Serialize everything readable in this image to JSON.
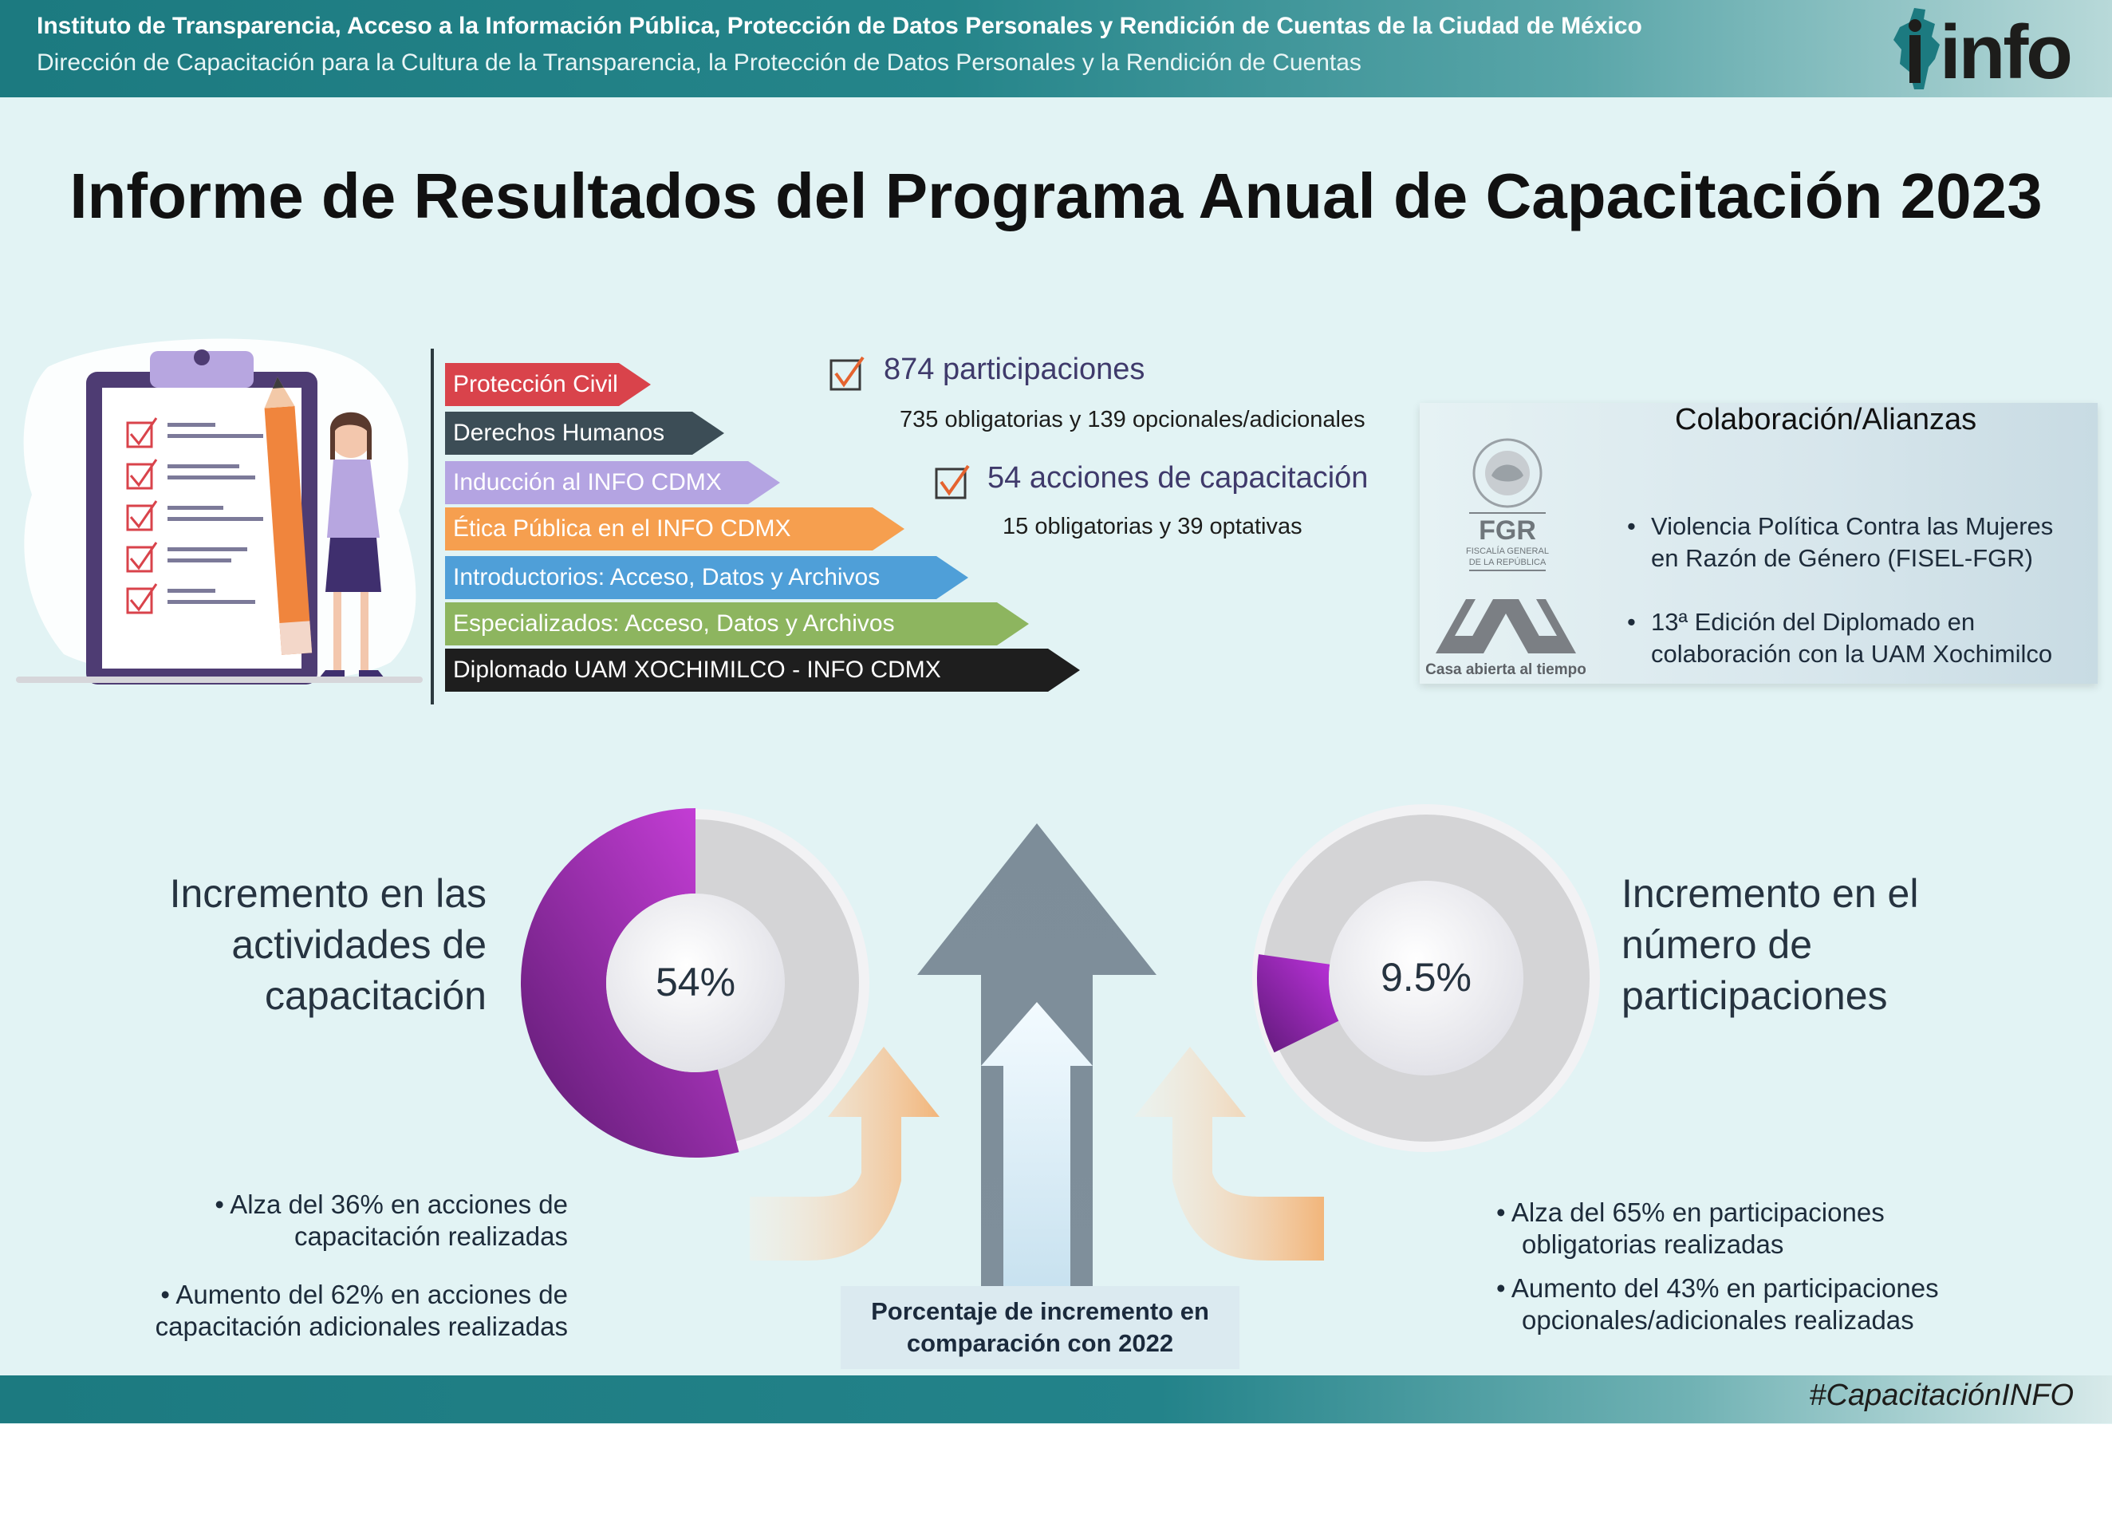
{
  "header": {
    "line1": "Instituto de Transparencia, Acceso a la Información Pública, Protección de Datos Personales y Rendición de Cuentas de la Ciudad de México",
    "line2": "Dirección de Capacitación para la Cultura de la Transparencia, la Protección de Datos Personales y la Rendición de Cuentas",
    "logo_text": "info"
  },
  "title": "Informe de Resultados del Programa Anual de Capacitación 2023",
  "topics": [
    {
      "label": "Protección Civil",
      "color": "#d9434b"
    },
    {
      "label": "Derechos Humanos",
      "color": "#3c4d56"
    },
    {
      "label": "Inducción al INFO CDMX",
      "color": "#b4a4e2"
    },
    {
      "label": "Ética Pública en el INFO CDMX",
      "color": "#f69f4f"
    },
    {
      "label": "Introductorios: Acceso, Datos y Archivos",
      "color": "#4f9fd8"
    },
    {
      "label": "Especializados: Acceso, Datos y Archivos",
      "color": "#8db55f"
    },
    {
      "label": "Diplomado UAM XOCHIMILCO - INFO CDMX",
      "color": "#1e1e1e"
    }
  ],
  "stats": {
    "participaciones": "874 participaciones",
    "participaciones_detail": "735 obligatorias y 139 opcionales/adicionales",
    "acciones": "54 acciones de capacitación",
    "acciones_detail": "15 obligatorias y 39 optativas"
  },
  "collab": {
    "title": "Colaboración/Alianzas",
    "items": [
      {
        "line1": "Violencia Política Contra las Mujeres",
        "line2": "en Razón de Género (FISEL-FGR)"
      },
      {
        "line1": "13ª Edición del Diplomado en",
        "line2": "colaboración con la UAM Xochimilco"
      }
    ],
    "fgr_text": "FGR",
    "fgr_sub1": "FISCALÍA GENERAL",
    "fgr_sub2": "DE LA REPÚBLICA",
    "uam_caption": "Casa abierta al tiempo"
  },
  "left_metric": {
    "percent_label": "54%",
    "value": 54,
    "title_lines": [
      "Incremento en las",
      "actividades de",
      "capacitación"
    ],
    "bullets": [
      {
        "line1": "Alza del 36% en acciones de",
        "line2": "capacitación realizadas"
      },
      {
        "line1": "Aumento del 62% en acciones de",
        "line2": "capacitación adicionales realizadas"
      }
    ]
  },
  "right_metric": {
    "percent_label": "9.5%",
    "value": 9.5,
    "title_lines": [
      "Incremento en el",
      "número de",
      "participaciones"
    ],
    "bullets": [
      {
        "line1": "Alza del 65% en participaciones",
        "line2": "obligatorias realizadas"
      },
      {
        "line1": "Aumento del 43% en participaciones",
        "line2": "opcionales/adicionales realizadas"
      }
    ]
  },
  "comparison": {
    "line1": "Porcentaje de incremento en",
    "line2": "comparación con 2022"
  },
  "footer": {
    "hashtag": "#CapacitaciónINFO"
  },
  "colors": {
    "teal": "#1c7a80",
    "background": "#e2f3f4",
    "purple": "#8e1fa8",
    "donut_track": "#d4d4d6"
  }
}
